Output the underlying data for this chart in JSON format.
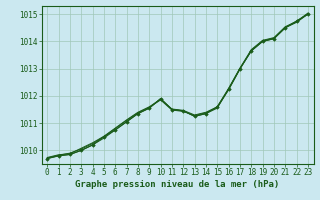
{
  "background_color": "#cbe8f0",
  "plot_bg_color": "#cbe8f0",
  "grid_color": "#a0c8b8",
  "line_color": "#1a5c1a",
  "marker_color": "#1a5c1a",
  "xlim": [
    -0.5,
    23.5
  ],
  "ylim": [
    1009.5,
    1015.3
  ],
  "yticks": [
    1010,
    1011,
    1012,
    1013,
    1014,
    1015
  ],
  "xticks": [
    0,
    1,
    2,
    3,
    4,
    5,
    6,
    7,
    8,
    9,
    10,
    11,
    12,
    13,
    14,
    15,
    16,
    17,
    18,
    19,
    20,
    21,
    22,
    23
  ],
  "series": [
    [
      1009.7,
      1009.8,
      1009.85,
      1010.0,
      1010.2,
      1010.45,
      1010.75,
      1011.05,
      1011.35,
      1011.55,
      1011.9,
      1011.5,
      1011.45,
      1011.25,
      1011.35,
      1011.55,
      1012.25,
      1013.0,
      1013.65,
      1014.0,
      1014.1,
      1014.5,
      1014.7,
      1015.0
    ],
    [
      1009.72,
      1009.82,
      1009.9,
      1010.05,
      1010.25,
      1010.5,
      1010.8,
      1011.1,
      1011.38,
      1011.58,
      1011.85,
      1011.48,
      1011.43,
      1011.28,
      1011.38,
      1011.58,
      1012.22,
      1012.98,
      1013.67,
      1014.02,
      1014.12,
      1014.52,
      1014.72,
      1015.02
    ],
    [
      1009.74,
      1009.84,
      1009.88,
      1010.08,
      1010.28,
      1010.52,
      1010.82,
      1011.12,
      1011.4,
      1011.6,
      1011.88,
      1011.52,
      1011.47,
      1011.3,
      1011.4,
      1011.6,
      1012.28,
      1013.02,
      1013.7,
      1014.04,
      1014.14,
      1014.54,
      1014.74,
      1015.04
    ]
  ],
  "main_series": [
    1009.7,
    1009.8,
    1009.85,
    1010.0,
    1010.2,
    1010.5,
    1010.75,
    1011.05,
    1011.35,
    1011.55,
    1011.9,
    1011.5,
    1011.45,
    1011.25,
    1011.35,
    1011.6,
    1012.25,
    1013.0,
    1013.65,
    1014.0,
    1014.1,
    1014.5,
    1014.75,
    1015.0
  ],
  "xlabel": "Graphe pression niveau de la mer (hPa)",
  "tick_fontsize": 5.5,
  "label_fontsize": 6.5
}
